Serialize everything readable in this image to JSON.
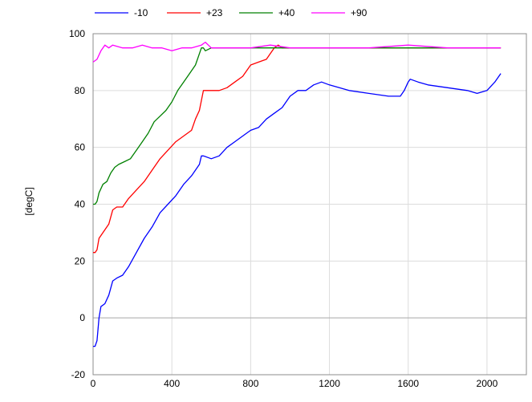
{
  "chart_data": {
    "type": "line",
    "title": "",
    "xlabel": "",
    "ylabel": "[degC]",
    "xlim": [
      0,
      2200
    ],
    "ylim": [
      -20,
      100
    ],
    "xticks": [
      0,
      400,
      800,
      1200,
      1600,
      2000
    ],
    "yticks": [
      -20,
      0,
      20,
      40,
      60,
      80,
      100
    ],
    "xtick_labels": [
      "0",
      "400",
      "800",
      "1200",
      "1600",
      "2000"
    ],
    "ytick_labels": [
      "-20",
      "0",
      "20",
      "40",
      "60",
      "80",
      "100"
    ],
    "grid": true,
    "legend_position": "top",
    "series": [
      {
        "name": "-10",
        "color": "#0000ff",
        "x": [
          0,
          10,
          20,
          30,
          40,
          60,
          80,
          100,
          120,
          150,
          180,
          220,
          260,
          300,
          340,
          380,
          420,
          460,
          500,
          540,
          550,
          560,
          600,
          640,
          680,
          720,
          760,
          800,
          840,
          880,
          920,
          960,
          1000,
          1040,
          1080,
          1120,
          1160,
          1200,
          1300,
          1400,
          1500,
          1560,
          1580,
          1600,
          1610,
          1650,
          1700,
          1800,
          1900,
          1950,
          2000,
          2040,
          2070
        ],
        "y": [
          -10,
          -10,
          -8,
          0,
          4,
          5,
          8,
          13,
          14,
          15,
          18,
          23,
          28,
          32,
          37,
          40,
          43,
          47,
          50,
          54,
          57,
          57,
          56,
          57,
          60,
          62,
          64,
          66,
          67,
          70,
          72,
          74,
          78,
          80,
          80,
          82,
          83,
          82,
          80,
          79,
          78,
          78,
          80,
          83,
          84,
          83,
          82,
          81,
          80,
          79,
          80,
          83,
          86
        ]
      },
      {
        "name": "+23",
        "color": "#ff0000",
        "x": [
          0,
          10,
          20,
          30,
          50,
          80,
          100,
          120,
          150,
          180,
          220,
          260,
          300,
          340,
          380,
          420,
          460,
          500,
          520,
          540,
          560,
          600,
          640,
          680,
          720,
          760,
          800,
          840,
          880,
          900,
          920,
          940,
          960,
          1000,
          1200,
          1400,
          1600,
          1800,
          2000,
          2070
        ],
        "y": [
          23,
          23,
          24,
          28,
          30,
          33,
          38,
          39,
          39,
          42,
          45,
          48,
          52,
          56,
          59,
          62,
          64,
          66,
          70,
          73,
          80,
          80,
          80,
          81,
          83,
          85,
          89,
          90,
          91,
          93,
          95,
          96,
          95,
          95,
          95,
          95,
          95,
          95,
          95,
          95
        ]
      },
      {
        "name": "+40",
        "color": "#008000",
        "x": [
          0,
          10,
          20,
          30,
          50,
          70,
          90,
          110,
          130,
          160,
          190,
          220,
          250,
          280,
          310,
          340,
          370,
          400,
          430,
          460,
          490,
          520,
          550,
          560,
          570,
          600,
          700,
          800,
          900,
          1000,
          1200,
          1400,
          1600,
          1800,
          2000,
          2070
        ],
        "y": [
          40,
          40,
          41,
          44,
          47,
          48,
          51,
          53,
          54,
          55,
          56,
          59,
          62,
          65,
          69,
          71,
          73,
          76,
          80,
          83,
          86,
          89,
          95,
          95,
          94,
          95,
          95,
          95,
          95,
          95,
          95,
          95,
          95,
          95,
          95,
          95
        ]
      },
      {
        "name": "+90",
        "color": "#ff00ff",
        "x": [
          0,
          20,
          40,
          60,
          80,
          100,
          150,
          200,
          250,
          300,
          350,
          400,
          450,
          500,
          550,
          570,
          600,
          700,
          800,
          900,
          1000,
          1200,
          1400,
          1600,
          1800,
          2000,
          2070
        ],
        "y": [
          90,
          91,
          94,
          96,
          95,
          96,
          95,
          95,
          96,
          95,
          95,
          94,
          95,
          95,
          96,
          97,
          95,
          95,
          95,
          96,
          95,
          95,
          95,
          96,
          95,
          95,
          95
        ]
      }
    ]
  }
}
